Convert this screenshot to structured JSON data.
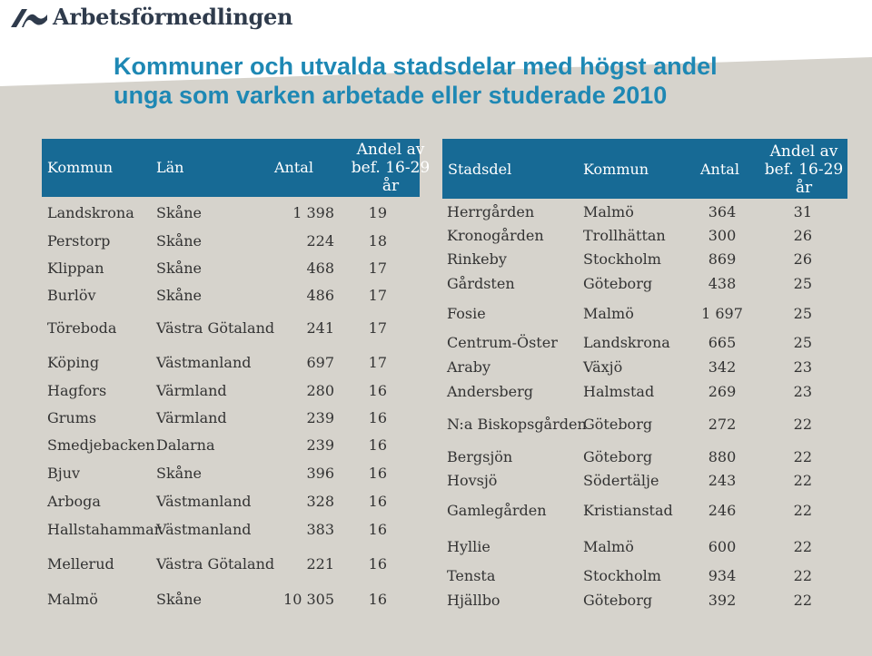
{
  "logo": {
    "text": "Arbetsförmedlingen"
  },
  "title": {
    "line1": "Kommuner och utvalda stadsdelar med högst andel",
    "line2": "unga som varken arbetade eller studerade 2010"
  },
  "left_table": {
    "headers": {
      "kommun": "Kommun",
      "lan": "Län",
      "antal": "Antal",
      "andel_1": "Andel av",
      "andel_2": "bef. 16-29",
      "andel_3": "år"
    },
    "rows": [
      {
        "kommun": "Landskrona",
        "lan": "Skåne",
        "antal": "1 398",
        "andel": "19"
      },
      {
        "kommun": "Perstorp",
        "lan": "Skåne",
        "antal": "224",
        "andel": "18"
      },
      {
        "kommun": "Klippan",
        "lan": "Skåne",
        "antal": "468",
        "andel": "17"
      },
      {
        "kommun": "Burlöv",
        "lan": "Skåne",
        "antal": "486",
        "andel": "17"
      },
      {
        "kommun": "Töreboda",
        "lan": "Västra Götaland",
        "antal": "241",
        "andel": "17"
      },
      {
        "kommun": "Köping",
        "lan": "Västmanland",
        "antal": "697",
        "andel": "17"
      },
      {
        "kommun": "Hagfors",
        "lan": "Värmland",
        "antal": "280",
        "andel": "16"
      },
      {
        "kommun": "Grums",
        "lan": "Värmland",
        "antal": "239",
        "andel": "16"
      },
      {
        "kommun": "Smedjebacken",
        "lan": "Dalarna",
        "antal": "239",
        "andel": "16"
      },
      {
        "kommun": "Bjuv",
        "lan": "Skåne",
        "antal": "396",
        "andel": "16"
      },
      {
        "kommun": "Arboga",
        "lan": "Västmanland",
        "antal": "328",
        "andel": "16"
      },
      {
        "kommun": "Hallstahammar",
        "lan": "Västmanland",
        "antal": "383",
        "andel": "16"
      },
      {
        "kommun": "Mellerud",
        "lan": "Västra Götaland",
        "antal": "221",
        "andel": "16"
      },
      {
        "kommun": "Malmö",
        "lan": "Skåne",
        "antal": "10 305",
        "andel": "16"
      }
    ]
  },
  "right_table": {
    "headers": {
      "stadsdel": "Stadsdel",
      "kommun": "Kommun",
      "antal": "Antal",
      "andel_1": "Andel av",
      "andel_2": "bef. 16-29",
      "andel_3": "år"
    },
    "rows": [
      {
        "stadsdel": "Herrgården",
        "kommun": "Malmö",
        "antal": "364",
        "andel": "31"
      },
      {
        "stadsdel": "Kronogården",
        "kommun": "Trollhättan",
        "antal": "300",
        "andel": "26"
      },
      {
        "stadsdel": "Rinkeby",
        "kommun": "Stockholm",
        "antal": "869",
        "andel": "26"
      },
      {
        "stadsdel": "Gårdsten",
        "kommun": "Göteborg",
        "antal": "438",
        "andel": "25"
      },
      {
        "stadsdel": "Fosie",
        "kommun": "Malmö",
        "antal": "1 697",
        "andel": "25"
      },
      {
        "stadsdel": "Centrum-Öster",
        "kommun": "Landskrona",
        "antal": "665",
        "andel": "25"
      },
      {
        "stadsdel": "Araby",
        "kommun": "Växjö",
        "antal": "342",
        "andel": "23"
      },
      {
        "stadsdel": "Andersberg",
        "kommun": "Halmstad",
        "antal": "269",
        "andel": "23"
      },
      {
        "stadsdel": "N:a Biskopsgården",
        "kommun": "Göteborg",
        "antal": "272",
        "andel": "22"
      },
      {
        "stadsdel": "Bergsjön",
        "kommun": "Göteborg",
        "antal": "880",
        "andel": "22"
      },
      {
        "stadsdel": "Hovsjö",
        "kommun": "Södertälje",
        "antal": "243",
        "andel": "22"
      },
      {
        "stadsdel": "Gamlegården",
        "kommun": "Kristianstad",
        "antal": "246",
        "andel": "22"
      },
      {
        "stadsdel": "Hyllie",
        "kommun": "Malmö",
        "antal": "600",
        "andel": "22"
      },
      {
        "stadsdel": "Tensta",
        "kommun": "Stockholm",
        "antal": "934",
        "andel": "22"
      },
      {
        "stadsdel": "Hjällbo",
        "kommun": "Göteborg",
        "antal": "392",
        "andel": "22"
      }
    ]
  },
  "colors": {
    "header_bg": "#176a95",
    "title": "#1e88b4",
    "backdrop": "#d6d3cc",
    "logo": "#2f3b4c"
  }
}
